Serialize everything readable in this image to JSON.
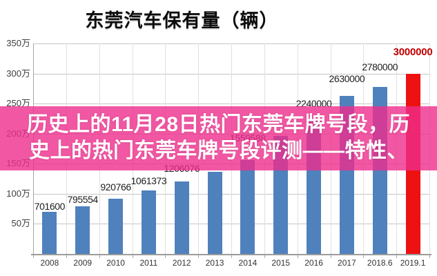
{
  "title": "东莞汽车保有量（辆）",
  "overlay": {
    "line1": "历史上的11月28日热门东莞车牌号段，历",
    "line2": "史上的热门东莞车牌号段评测——特性、",
    "bg_color_rgba": "rgba(238,45,140,0.80)"
  },
  "chart_data": {
    "type": "bar",
    "title": "东莞汽车保有量（辆）",
    "categories": [
      "2008",
      "2009",
      "2010",
      "2011",
      "2012",
      "2013",
      "2014",
      "2015",
      "2016",
      "2017",
      "2018.6",
      "2019.1"
    ],
    "values": [
      701600,
      795554,
      920766,
      1061373,
      1206076,
      1370000,
      1559588,
      1960000,
      2240000,
      2630000,
      2780000,
      3000000
    ],
    "labels": [
      "701600",
      "795554",
      "920766",
      "1061373",
      "1206076",
      "",
      "1559588",
      "",
      "2240000",
      "2630000",
      "2780000",
      "3000000"
    ],
    "label_y_bottom": [
      307,
      297,
      279,
      270,
      252,
      234,
      208,
      186,
      158,
      122,
      105,
      83
    ],
    "bar_color": "#4f81bd",
    "highlight_index": 11,
    "highlight_bar_color": "#ee1111",
    "highlight_label_color": "#c00000",
    "label_color": "#1c1c1c",
    "ylim": [
      0,
      3500000
    ],
    "ytick_step": 500000,
    "ytick_labels_top_to_bottom": [
      "350万",
      "300万",
      "250万",
      "200万",
      "150万",
      "100万",
      "50万"
    ],
    "grid": "horizontal and vertical light gray",
    "legend": false
  }
}
